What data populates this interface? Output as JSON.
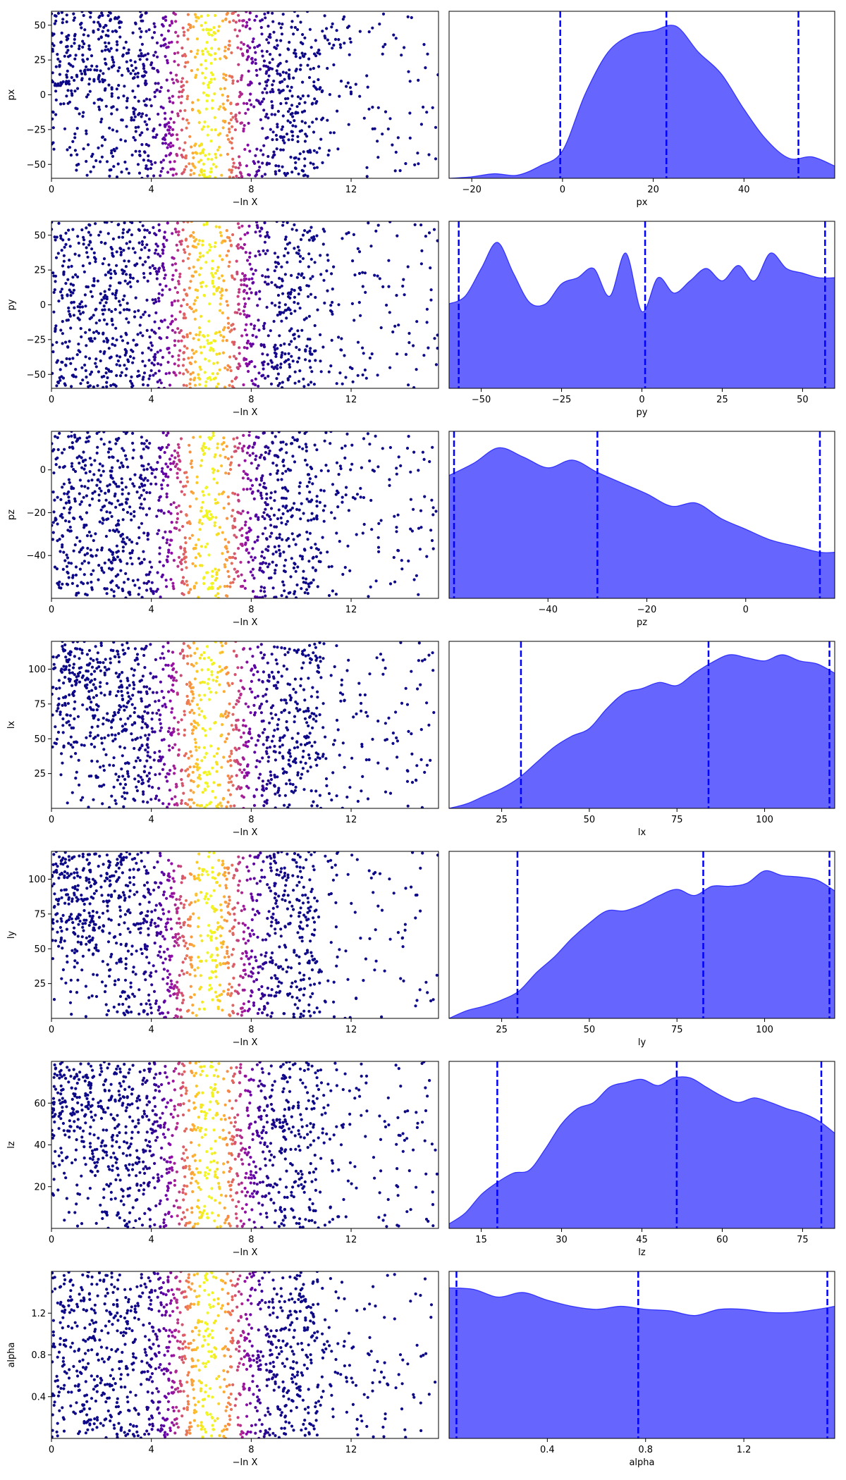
{
  "chart_data": [
    {
      "type": "scatter",
      "xlabel": "−ln X",
      "ylabel": "px",
      "xticks": [
        0,
        4,
        8,
        12
      ],
      "yticks": [
        -50,
        -25,
        0,
        25,
        50
      ],
      "xlim": [
        0,
        15.5
      ],
      "ylim": [
        -60,
        60
      ],
      "density": "ramp",
      "colormap": "plasma",
      "marker_color_low": "#0d0887",
      "marker_color_high": "#f0f921"
    },
    {
      "type": "area",
      "xlabel": "px",
      "xticks": [
        -20,
        0,
        20,
        40
      ],
      "xlim": [
        -25,
        60
      ],
      "quantile_lines": [
        -0.5,
        22.9,
        52.0
      ],
      "line_color": "#0000ff",
      "fill_color": "#6666ff",
      "x": [
        -25,
        -20,
        -15,
        -10,
        -5,
        0,
        5,
        10,
        15,
        20,
        25,
        30,
        35,
        40,
        45,
        50,
        55,
        60
      ],
      "y": [
        0.0,
        0.01,
        0.03,
        0.02,
        0.08,
        0.18,
        0.55,
        0.82,
        0.93,
        0.96,
        0.99,
        0.82,
        0.68,
        0.45,
        0.25,
        0.13,
        0.14,
        0.08
      ]
    },
    {
      "type": "scatter",
      "xlabel": "−ln X",
      "ylabel": "py",
      "xticks": [
        0,
        4,
        8,
        12
      ],
      "yticks": [
        -50,
        -25,
        0,
        25,
        50
      ],
      "xlim": [
        0,
        15.5
      ],
      "ylim": [
        -60,
        60
      ],
      "density": "flat",
      "colormap": "plasma",
      "marker_color_low": "#0d0887",
      "marker_color_high": "#f0f921"
    },
    {
      "type": "area",
      "xlabel": "py",
      "xticks": [
        -50,
        -25,
        0,
        25,
        50
      ],
      "xlim": [
        -60,
        60
      ],
      "quantile_lines": [
        -57,
        1,
        57
      ],
      "line_color": "#0000ff",
      "fill_color": "#6666ff",
      "x": [
        -60,
        -55,
        -50,
        -45,
        -40,
        -35,
        -30,
        -25,
        -20,
        -15,
        -10,
        -5,
        0,
        5,
        10,
        15,
        20,
        25,
        30,
        35,
        40,
        45,
        50,
        55,
        60
      ],
      "y": [
        0.55,
        0.6,
        0.78,
        0.95,
        0.75,
        0.56,
        0.55,
        0.68,
        0.72,
        0.78,
        0.6,
        0.88,
        0.5,
        0.72,
        0.62,
        0.7,
        0.78,
        0.7,
        0.8,
        0.7,
        0.88,
        0.78,
        0.75,
        0.72,
        0.72
      ]
    },
    {
      "type": "scatter",
      "xlabel": "−ln X",
      "ylabel": "pz",
      "xticks": [
        0,
        4,
        8,
        12
      ],
      "yticks": [
        -40,
        -20,
        0
      ],
      "xlim": [
        0,
        15.5
      ],
      "ylim": [
        -60,
        18
      ],
      "density": "flat",
      "colormap": "plasma",
      "marker_color_low": "#0d0887",
      "marker_color_high": "#f0f921"
    },
    {
      "type": "area",
      "xlabel": "pz",
      "xticks": [
        -40,
        -20,
        0
      ],
      "xlim": [
        -60,
        18
      ],
      "quantile_lines": [
        -59,
        -30,
        15
      ],
      "line_color": "#0000ff",
      "fill_color": "#6666ff",
      "x": [
        -60,
        -55,
        -50,
        -45,
        -40,
        -35,
        -30,
        -25,
        -20,
        -15,
        -10,
        -5,
        0,
        5,
        10,
        15,
        18
      ],
      "y": [
        0.8,
        0.88,
        0.98,
        0.92,
        0.85,
        0.9,
        0.82,
        0.75,
        0.68,
        0.6,
        0.62,
        0.52,
        0.45,
        0.38,
        0.34,
        0.3,
        0.3
      ]
    },
    {
      "type": "scatter",
      "xlabel": "−ln X",
      "ylabel": "lx",
      "xticks": [
        0,
        4,
        8,
        12
      ],
      "yticks": [
        25,
        50,
        75,
        100
      ],
      "xlim": [
        0,
        15.5
      ],
      "ylim": [
        0,
        120
      ],
      "density": "ramp",
      "colormap": "plasma",
      "marker_color_low": "#0d0887",
      "marker_color_high": "#f0f921"
    },
    {
      "type": "area",
      "xlabel": "lx",
      "xticks": [
        25,
        50,
        75,
        100
      ],
      "xlim": [
        10,
        120
      ],
      "quantile_lines": [
        30.5,
        84,
        118.5
      ],
      "line_color": "#0000ff",
      "fill_color": "#6666ff",
      "x": [
        10,
        15,
        20,
        25,
        30,
        35,
        40,
        45,
        50,
        55,
        60,
        65,
        70,
        75,
        80,
        85,
        90,
        95,
        100,
        105,
        110,
        115,
        120
      ],
      "y": [
        0.0,
        0.03,
        0.08,
        0.13,
        0.2,
        0.3,
        0.4,
        0.47,
        0.52,
        0.65,
        0.75,
        0.78,
        0.82,
        0.8,
        0.88,
        0.95,
        1.0,
        0.98,
        0.96,
        1.0,
        0.96,
        0.94,
        0.88
      ]
    },
    {
      "type": "scatter",
      "xlabel": "−ln X",
      "ylabel": "ly",
      "xticks": [
        0,
        4,
        8,
        12
      ],
      "yticks": [
        25,
        50,
        75,
        100
      ],
      "xlim": [
        0,
        15.5
      ],
      "ylim": [
        0,
        120
      ],
      "density": "ramp",
      "colormap": "plasma",
      "marker_color_low": "#0d0887",
      "marker_color_high": "#f0f921"
    },
    {
      "type": "area",
      "xlabel": "ly",
      "xticks": [
        25,
        50,
        75,
        100
      ],
      "xlim": [
        10,
        120
      ],
      "quantile_lines": [
        29.5,
        82.5,
        118.5
      ],
      "line_color": "#0000ff",
      "fill_color": "#6666ff",
      "x": [
        10,
        15,
        20,
        25,
        30,
        35,
        40,
        45,
        50,
        55,
        60,
        65,
        70,
        75,
        80,
        85,
        90,
        95,
        100,
        105,
        110,
        115,
        120
      ],
      "y": [
        0.0,
        0.05,
        0.08,
        0.12,
        0.18,
        0.3,
        0.4,
        0.52,
        0.62,
        0.7,
        0.7,
        0.74,
        0.8,
        0.84,
        0.8,
        0.86,
        0.86,
        0.88,
        0.96,
        0.93,
        0.92,
        0.9,
        0.83
      ]
    },
    {
      "type": "scatter",
      "xlabel": "−ln X",
      "ylabel": "lz",
      "xticks": [
        0,
        4,
        8,
        12
      ],
      "yticks": [
        20,
        40,
        60
      ],
      "xlim": [
        0,
        15.5
      ],
      "ylim": [
        0,
        80
      ],
      "density": "ramp",
      "colormap": "plasma",
      "marker_color_low": "#0d0887",
      "marker_color_high": "#f0f921"
    },
    {
      "type": "area",
      "xlabel": "lz",
      "xticks": [
        15,
        30,
        45,
        60,
        75
      ],
      "xlim": [
        9,
        81
      ],
      "quantile_lines": [
        18,
        51.5,
        78.5
      ],
      "line_color": "#0000ff",
      "fill_color": "#6666ff",
      "x": [
        9,
        12,
        15,
        18,
        21,
        24,
        27,
        30,
        33,
        36,
        39,
        42,
        45,
        48,
        51,
        54,
        57,
        60,
        63,
        66,
        69,
        72,
        75,
        78,
        81
      ],
      "y": [
        0.03,
        0.1,
        0.22,
        0.3,
        0.36,
        0.38,
        0.52,
        0.68,
        0.78,
        0.82,
        0.92,
        0.95,
        0.97,
        0.93,
        0.98,
        0.98,
        0.92,
        0.86,
        0.82,
        0.85,
        0.82,
        0.78,
        0.75,
        0.7,
        0.62
      ]
    },
    {
      "type": "scatter",
      "xlabel": "−ln X",
      "ylabel": "alpha",
      "xticks": [
        0,
        4,
        8,
        12
      ],
      "yticks": [
        0.4,
        0.8,
        1.2
      ],
      "xlim": [
        0,
        15.5
      ],
      "ylim": [
        0,
        1.6
      ],
      "density": "flat",
      "colormap": "plasma",
      "marker_color_low": "#0d0887",
      "marker_color_high": "#f0f921"
    },
    {
      "type": "area",
      "xlabel": "alpha",
      "xticks": [
        0.4,
        0.8,
        1.2
      ],
      "xlim": [
        0,
        1.57
      ],
      "quantile_lines": [
        0.03,
        0.77,
        1.54
      ],
      "line_color": "#0000ff",
      "fill_color": "#6666ff",
      "x": [
        0,
        0.1,
        0.2,
        0.3,
        0.4,
        0.5,
        0.6,
        0.7,
        0.8,
        0.9,
        1.0,
        1.1,
        1.2,
        1.3,
        1.4,
        1.5,
        1.57
      ],
      "y": [
        0.98,
        0.97,
        0.92,
        0.95,
        0.9,
        0.86,
        0.84,
        0.86,
        0.84,
        0.83,
        0.8,
        0.84,
        0.84,
        0.82,
        0.82,
        0.84,
        0.86
      ]
    }
  ]
}
